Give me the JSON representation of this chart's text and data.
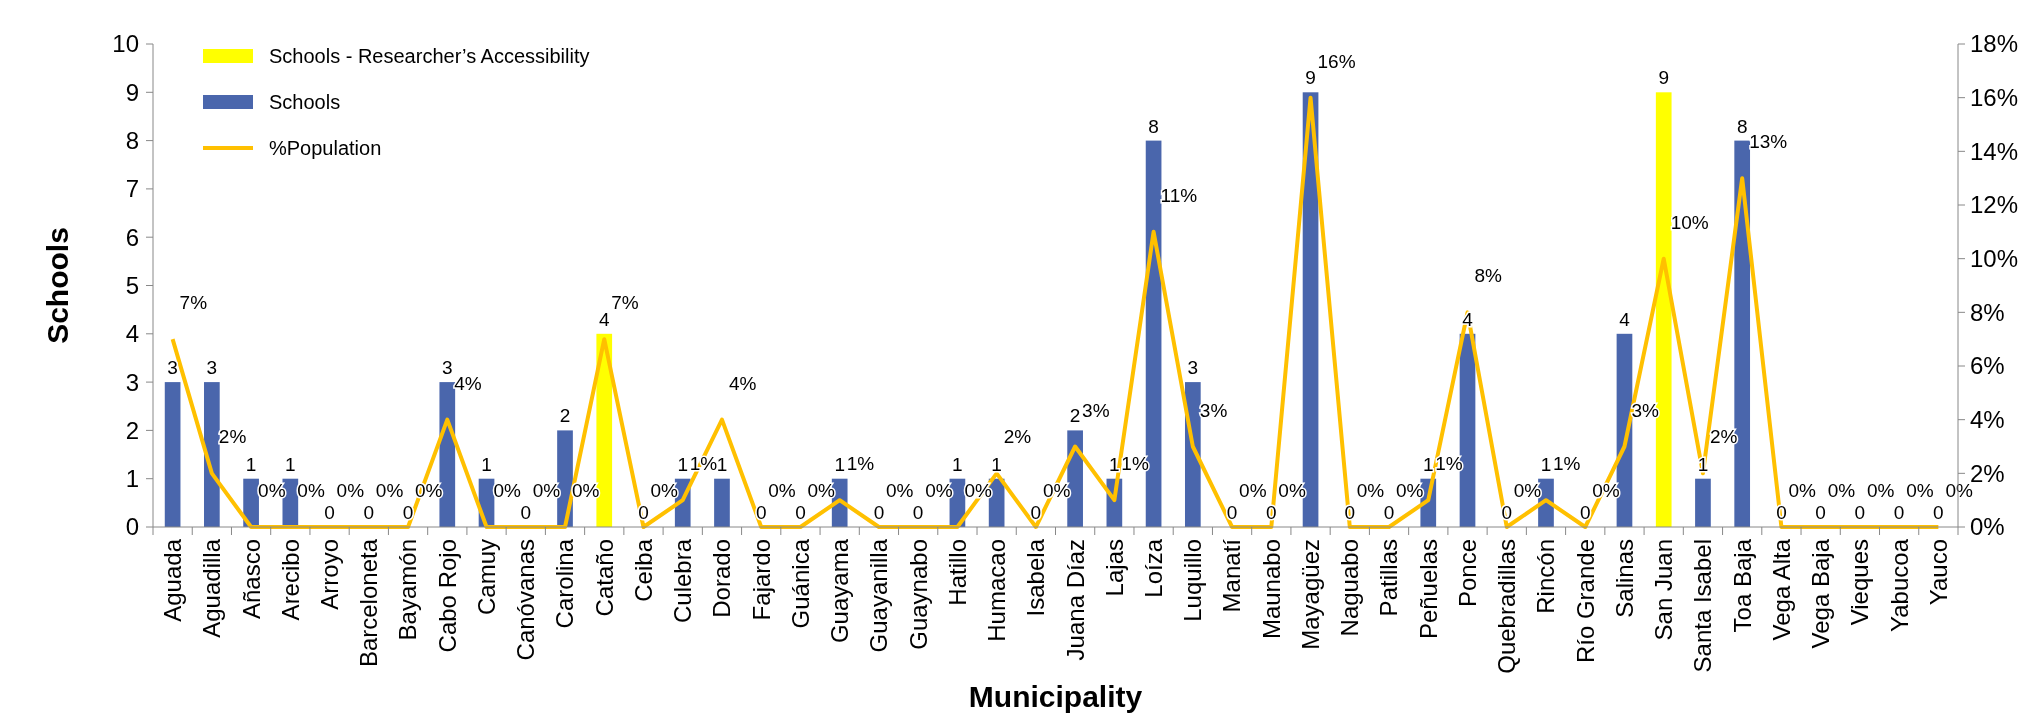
{
  "chart_data": {
    "type": "bar",
    "xlabel": "Municipality",
    "ylabel": "Schools",
    "stacked": true,
    "data_labels": true,
    "legend": "top left",
    "grid": false,
    "categories": [
      "Aguada",
      "Aguadilla",
      "Añasco",
      "Arecibo",
      "Arroyo",
      "Barceloneta",
      "Bayamón",
      "Cabo Rojo",
      "Camuy",
      "Canóvanas",
      "Carolina",
      "Cataño",
      "Ceiba",
      "Culebra",
      "Dorado",
      "Fajardo",
      "Guánica",
      "Guayama",
      "Guayanilla",
      "Guaynabo",
      "Hatillo",
      "Humacao",
      "Isabela",
      "Juana Díaz",
      "Lajas",
      "Loíza",
      "Luquillo",
      "Manatí",
      "Maunabo",
      "Mayagüez",
      "Naguabo",
      "Patillas",
      "Peñuelas",
      "Ponce",
      "Quebradillas",
      "Rincón",
      "Río Grande",
      "Salinas",
      "San Juan",
      "Santa Isabel",
      "Toa Baja",
      "Vega Alta",
      "Vega Baja",
      "Vieques",
      "Yabucoa",
      "Yauco"
    ],
    "ylim": [
      0,
      10
    ],
    "yticks": [
      0,
      1,
      2,
      3,
      4,
      5,
      6,
      7,
      8,
      9,
      10
    ],
    "y2lim": [
      0,
      18
    ],
    "y2ticks": [
      {
        "value": 0,
        "label": "0%"
      },
      {
        "value": 2,
        "label": "2%"
      },
      {
        "value": 4,
        "label": "4%"
      },
      {
        "value": 6,
        "label": "6%"
      },
      {
        "value": 8,
        "label": "8%"
      },
      {
        "value": 10,
        "label": "10%"
      },
      {
        "value": 12,
        "label": "12%"
      },
      {
        "value": 14,
        "label": "14%"
      },
      {
        "value": 16,
        "label": "16%"
      },
      {
        "value": 18,
        "label": "18%"
      }
    ],
    "series": [
      {
        "name": "Schools - Researcher’s Accessibility",
        "color": "#ffff00",
        "values": [
          null,
          null,
          null,
          null,
          null,
          null,
          null,
          null,
          null,
          null,
          null,
          4,
          null,
          null,
          null,
          null,
          null,
          null,
          null,
          null,
          null,
          null,
          null,
          null,
          null,
          null,
          null,
          null,
          null,
          null,
          null,
          null,
          null,
          null,
          null,
          null,
          null,
          null,
          9,
          null,
          null,
          null,
          null,
          null,
          null,
          null
        ]
      },
      {
        "name": "Schools",
        "color": "#4a66ac",
        "values": [
          3,
          3,
          1,
          1,
          0,
          0,
          0,
          3,
          1,
          0,
          2,
          null,
          0,
          1,
          1,
          0,
          0,
          1,
          0,
          0,
          1,
          1,
          0,
          2,
          1,
          8,
          3,
          0,
          0,
          9,
          0,
          0,
          1,
          4,
          0,
          1,
          0,
          4,
          null,
          1,
          8,
          0,
          0,
          0,
          0,
          0
        ]
      },
      {
        "name": "%Population",
        "type": "line",
        "axis": "y2",
        "color": "#ffc000",
        "values": [
          7,
          2,
          0,
          0,
          0,
          0,
          0,
          4,
          0,
          0,
          0,
          7,
          0,
          1,
          4,
          0,
          0,
          1,
          0,
          0,
          0,
          2,
          0,
          3,
          1,
          11,
          3,
          0,
          0,
          16,
          0,
          0,
          1,
          8,
          0,
          1,
          0,
          3,
          10,
          2,
          13,
          0,
          0,
          0,
          0,
          0
        ],
        "value_labels": [
          "7%",
          "2%",
          "0%",
          "0%",
          "0%",
          "0%",
          "0%",
          "4%",
          "0%",
          "0%",
          "0%",
          "7%",
          "0%",
          "1%",
          "4%",
          "0%",
          "0%",
          "1%",
          "0%",
          "0%",
          "0%",
          "2%",
          "0%",
          "3%",
          "1%",
          "11%",
          "3%",
          "0%",
          "0%",
          "16%",
          "0%",
          "0%",
          "1%",
          "8%",
          "0%",
          "1%",
          "0%",
          "3%",
          "10%",
          "2%",
          "13%",
          "0%",
          "0%",
          "0%",
          "0%",
          "0%"
        ]
      }
    ]
  }
}
